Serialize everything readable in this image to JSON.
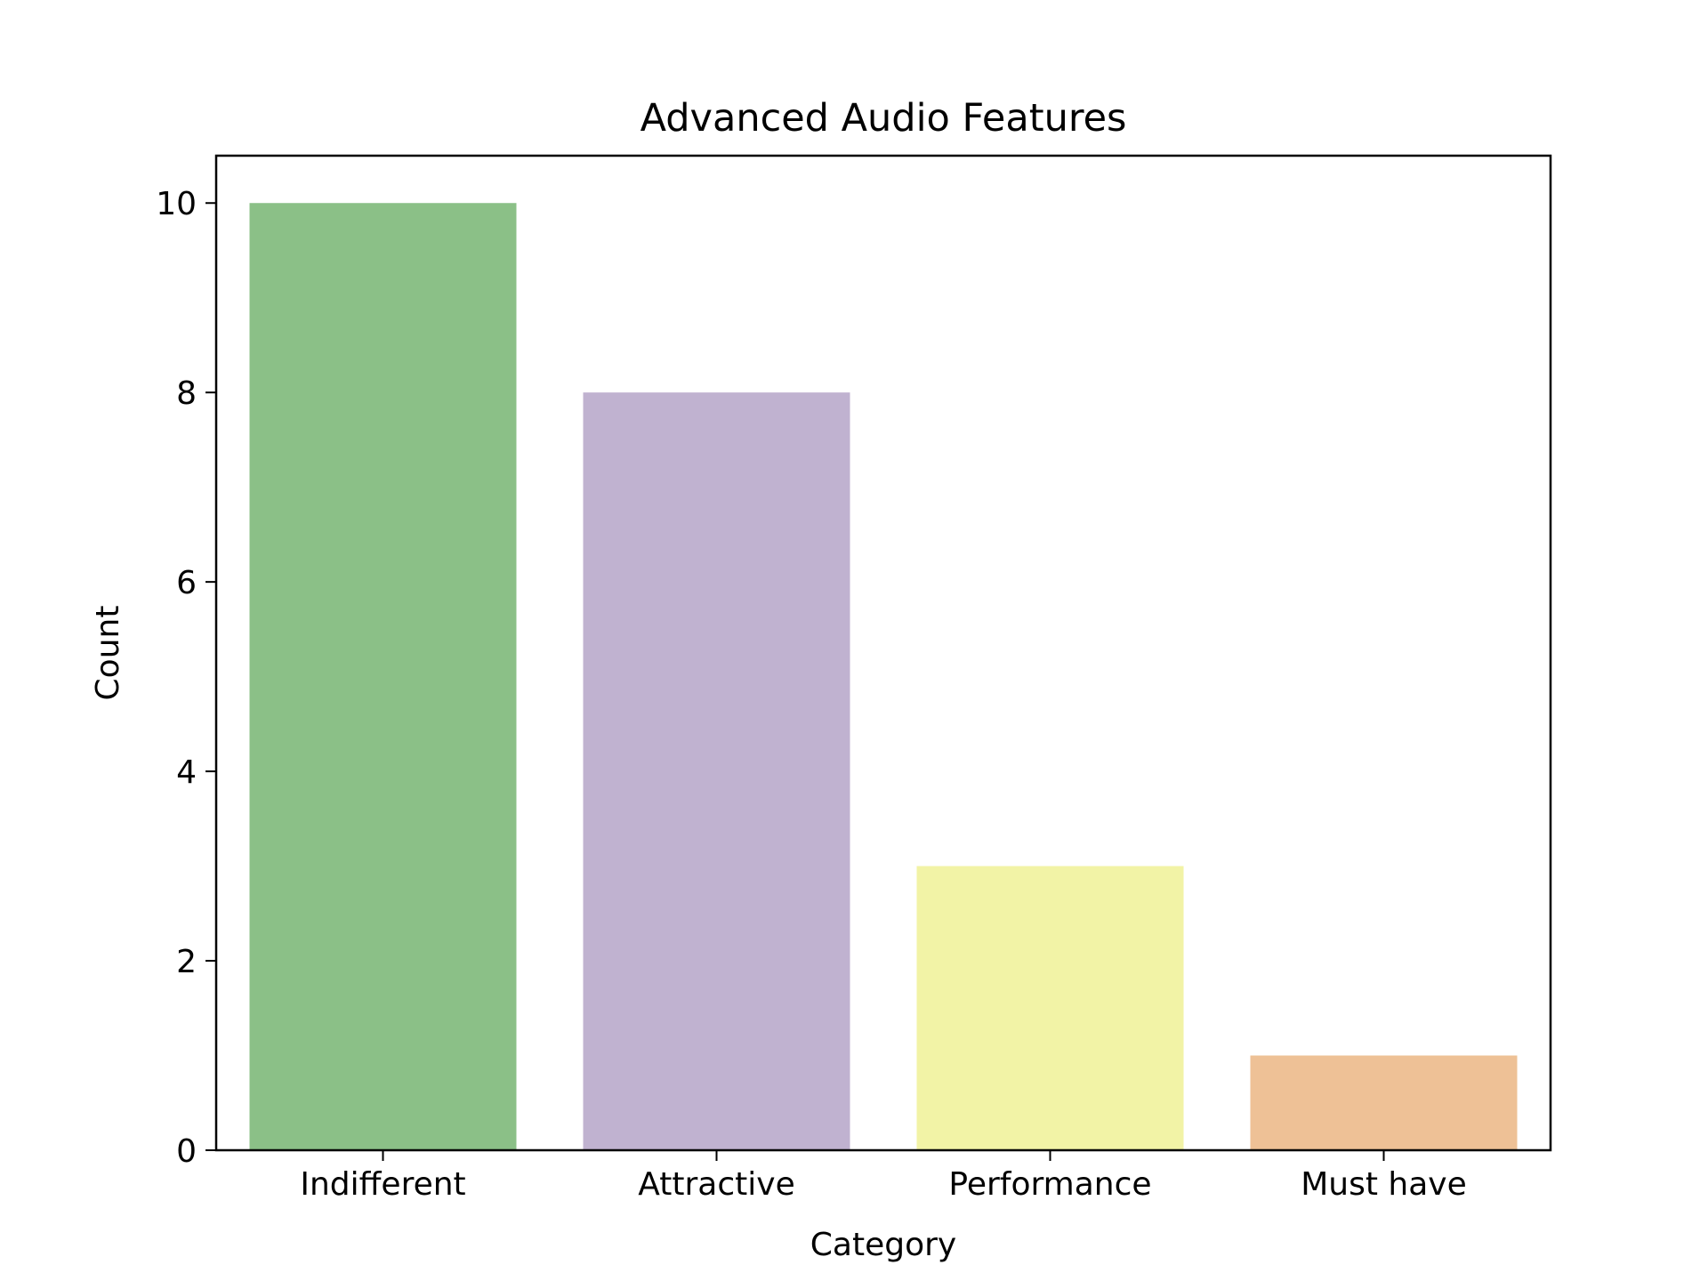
{
  "chart_data": {
    "type": "bar",
    "title": "Advanced Audio Features",
    "xlabel": "Category",
    "ylabel": "Count",
    "categories": [
      "Indifferent",
      "Attractive",
      "Performance",
      "Must have"
    ],
    "values": [
      10,
      8,
      3,
      1
    ],
    "colors": [
      "#8bc087",
      "#c0b2d0",
      "#f2f3a6",
      "#eec196"
    ],
    "ylim": [
      0,
      10.5
    ],
    "yticks": [
      0,
      2,
      4,
      6,
      8,
      10
    ],
    "grid": false,
    "legend": "none"
  }
}
